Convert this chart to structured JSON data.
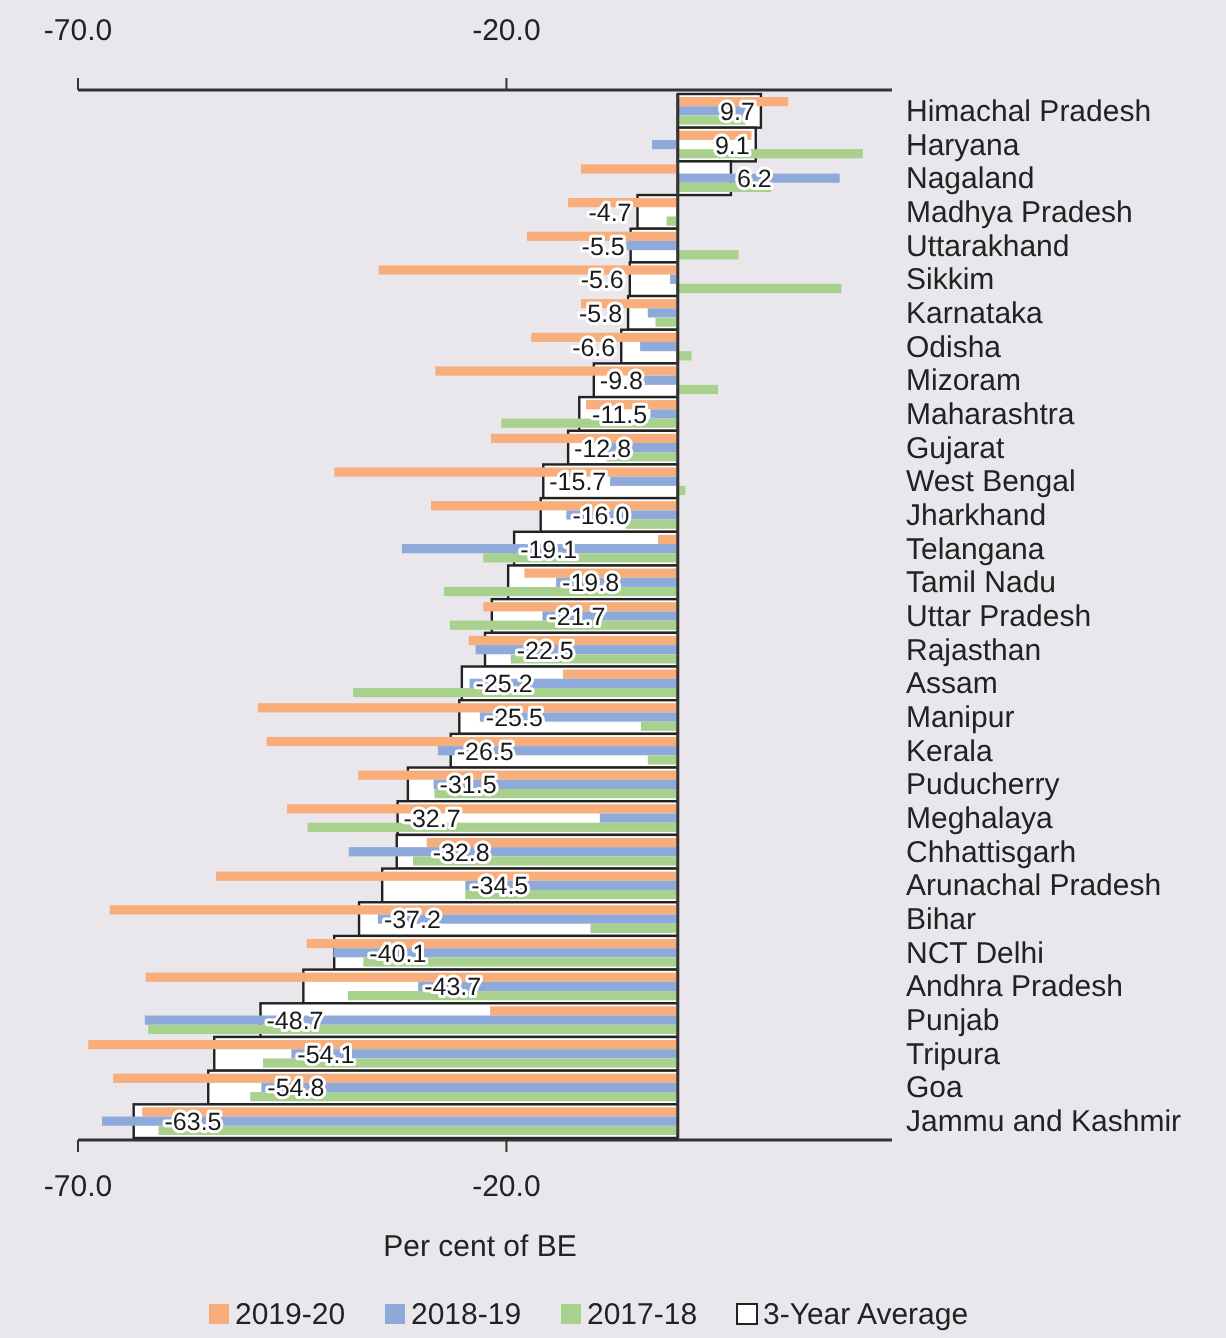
{
  "chart_data": {
    "type": "bar",
    "orientation": "horizontal",
    "xlabel": "Per cent of BE",
    "categories": [
      "Himachal Pradesh",
      "Haryana",
      "Nagaland",
      "Madhya Pradesh",
      "Uttarakhand",
      "Sikkim",
      "Karnataka",
      "Odisha",
      "Mizoram",
      "Maharashtra",
      "Gujarat",
      "West Bengal",
      "Jharkhand",
      "Telangana",
      "Tamil Nadu",
      "Uttar Pradesh",
      "Rajasthan",
      "Assam",
      "Manipur",
      "Kerala",
      "Puducherry",
      "Meghalaya",
      "Chhattisgarh",
      "Arunachal Pradesh",
      "Bihar",
      "NCT Delhi",
      "Andhra Pradesh",
      "Punjab",
      "Tripura",
      "Goa",
      "Jammu and Kashmir"
    ],
    "series": [
      {
        "name": "3-Year Average",
        "color": "#ffffff",
        "values": [
          9.7,
          9.1,
          6.2,
          -4.7,
          -5.5,
          -5.6,
          -5.8,
          -6.6,
          -9.8,
          -11.5,
          -12.8,
          -15.7,
          -16.0,
          -19.1,
          -19.8,
          -21.7,
          -22.5,
          -25.2,
          -25.5,
          -26.5,
          -31.5,
          -32.7,
          -32.8,
          -34.5,
          -37.2,
          -40.1,
          -43.7,
          -48.7,
          -54.1,
          -54.8,
          -63.5
        ],
        "value_labels": [
          "9.7",
          "9.1",
          "6.2",
          "-4.7",
          "-5.5",
          "-5.6",
          "-5.8",
          "-6.6",
          "-9.8",
          "-11.5",
          "-12.8",
          "-15.7",
          "-16.0",
          "-19.1",
          "-19.8",
          "-21.7",
          "-22.5",
          "-25.2",
          "-25.5",
          "-26.5",
          "-31.5",
          "-32.7",
          "-32.8",
          "-34.5",
          "-37.2",
          "-40.1",
          "-43.7",
          "-48.7",
          "-54.1",
          "-54.8",
          "-63.5"
        ]
      },
      {
        "name": "2019-20",
        "color": "#f7ae7b",
        "values": [
          12.9,
          8.6,
          -11.3,
          -12.8,
          -17.6,
          -34.9,
          -11.3,
          -17.1,
          -28.3,
          -10.7,
          -21.8,
          -40.1,
          -28.8,
          -2.3,
          -17.9,
          -22.7,
          -24.4,
          -13.4,
          -49.0,
          -48.0,
          -37.3,
          -45.6,
          -29.3,
          -53.9,
          -66.3,
          -43.3,
          -62.1,
          -21.9,
          -68.8,
          -65.9,
          -62.5
        ]
      },
      {
        "name": "2018-19",
        "color": "#8eaadb",
        "values": [
          8.0,
          -3.0,
          18.9,
          0,
          -6.0,
          -0.9,
          -3.5,
          -4.4,
          -5.8,
          -3.2,
          -8.3,
          -7.9,
          -13.0,
          -32.2,
          -14.2,
          -15.8,
          -23.6,
          -24.3,
          -23.1,
          -28.0,
          -28.5,
          -9.1,
          -38.4,
          -24.8,
          -35.0,
          -40.2,
          -30.3,
          -62.2,
          -45.1,
          -48.6,
          -67.2
        ]
      },
      {
        "name": "2017-18",
        "color": "#a9d18e",
        "values": [
          7.9,
          21.6,
          10.9,
          -1.3,
          7.1,
          19.1,
          -2.6,
          1.6,
          4.7,
          -20.6,
          -8.3,
          0.9,
          -6.1,
          -22.7,
          -27.3,
          -26.6,
          -19.5,
          -37.9,
          -4.3,
          -3.5,
          -28.4,
          -43.2,
          -30.9,
          -24.8,
          -10.2,
          -36.7,
          -38.5,
          -61.8,
          -48.4,
          -49.9,
          -60.6
        ]
      }
    ],
    "xlim": [
      -70,
      25
    ],
    "xticks": [
      {
        "value": -70,
        "label": "-70.0"
      },
      {
        "value": -20,
        "label": "-20.0"
      }
    ],
    "x2lim": [
      -70,
      25
    ],
    "x2ticks": [
      {
        "value": -70,
        "label": "-70.0"
      },
      {
        "value": -20,
        "label": "-20.0"
      }
    ],
    "legend": "bottom",
    "grid": false
  }
}
